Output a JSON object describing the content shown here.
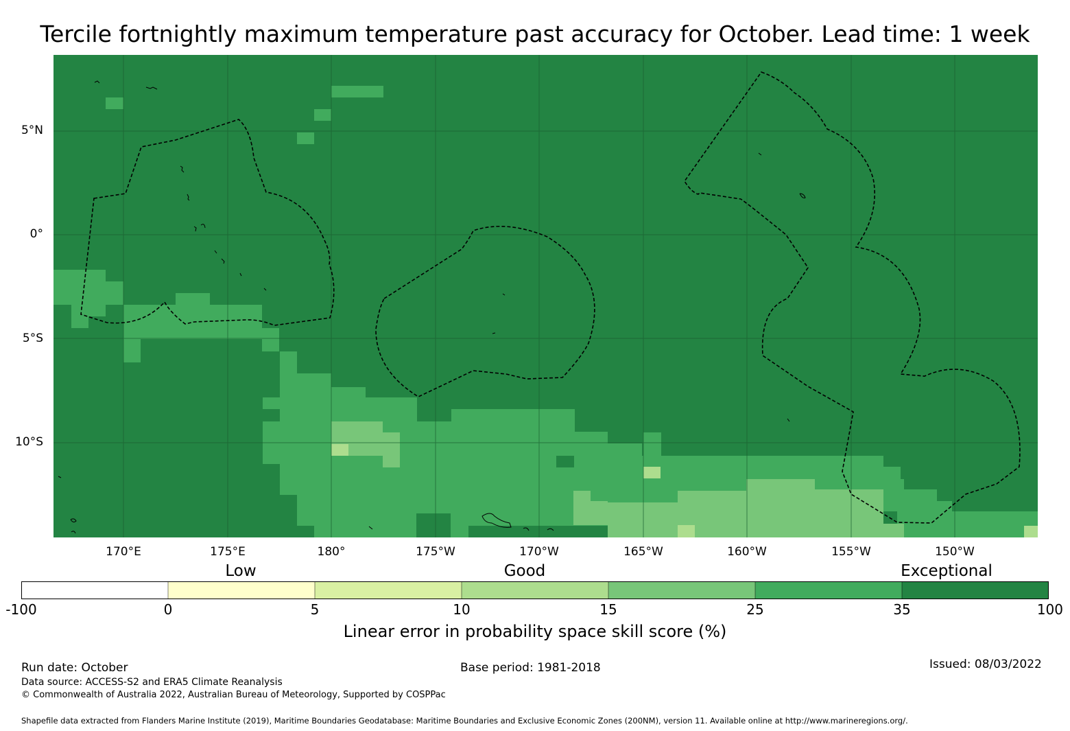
{
  "title": "Tercile fortnightly maximum temperature past accuracy for October. Lead time: 1 week",
  "map": {
    "lat_labels": [
      "5°N",
      "0°",
      "5°S",
      "10°S"
    ],
    "lon_labels": [
      "170°E",
      "175°E",
      "180°",
      "175°W",
      "170°W",
      "165°W",
      "160°W",
      "155°W",
      "150°W"
    ],
    "colors": {
      "exceptional": "#238443",
      "band_25_35": "#41ab5d",
      "band_15_25": "#78c679",
      "band_10_15": "#addd8e",
      "band_5_10": "#d9f0a3",
      "band_0_5": "#ffffcc",
      "below_0": "#ffffff",
      "gridline": "#1a5e30",
      "eez_boundary": "#000000"
    }
  },
  "legend": {
    "categories": [
      "Low",
      "Good",
      "Exceptional"
    ],
    "ticks": [
      "-100",
      "0",
      "5",
      "10",
      "15",
      "25",
      "35",
      "100"
    ],
    "label": "Linear error in probability space skill score (%)"
  },
  "footer": {
    "run_date": "Run date: October",
    "base_period": "Base period: 1981-2018",
    "issued": "Issued: 08/03/2022",
    "data_source": "Data source: ACCESS-S2 and ERA5 Climate Reanalysis",
    "copyright": "© Commonwealth of Australia 2022, Australian Bureau of Meteorology, Supported by COSPPac",
    "shapefile": "Shapefile data extracted from Flanders Marine Institute (2019), Maritime Boundaries Geodatabase: Maritime Boundaries and Exclusive Economic Zones (200NM), version 11. Available online at http://www.marineregions.org/."
  }
}
